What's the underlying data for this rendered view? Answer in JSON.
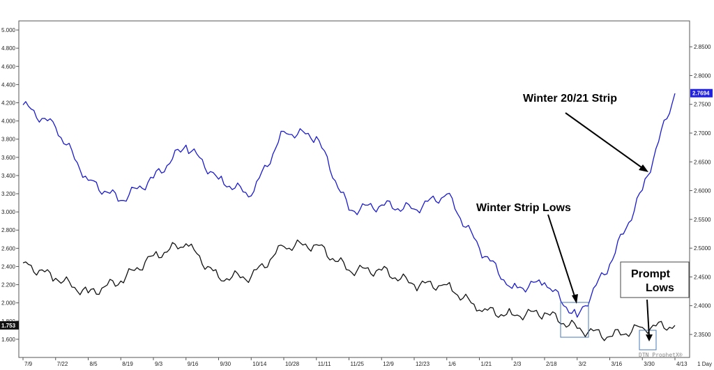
{
  "chart_data": {
    "type": "line",
    "title": "",
    "xlabel": "",
    "ylabel": "",
    "grid": false,
    "x_tick_labels": [
      "7/9",
      "7/22",
      "8/5",
      "8/19",
      "9/3",
      "9/16",
      "9/30",
      "10/14",
      "10/28",
      "11/11",
      "11/25",
      "12/9",
      "12/23",
      "1/6",
      "1/21",
      "2/3",
      "2/18",
      "3/2",
      "3/16",
      "3/30",
      "4/13"
    ],
    "y_left": {
      "ylim": [
        1.4,
        5.1
      ],
      "ticks": [
        "1.600",
        "1.800",
        "2.000",
        "2.200",
        "2.400",
        "2.600",
        "2.800",
        "3.000",
        "3.200",
        "3.400",
        "3.600",
        "3.800",
        "4.000",
        "4.200",
        "4.400",
        "4.600",
        "4.800",
        "5.000"
      ],
      "last_value_label": "1.753"
    },
    "y_right": {
      "ylim": [
        2.31,
        2.895
      ],
      "ticks": [
        "2.3500",
        "2.4000",
        "2.4500",
        "2.5000",
        "2.5500",
        "2.6000",
        "2.6500",
        "2.7000",
        "2.7500",
        "2.8000",
        "2.8500"
      ],
      "last_value_label": "2.7694"
    },
    "series": [
      {
        "name": "Winter 20/21 Strip",
        "axis": "right",
        "color": "#1a1acc",
        "x": [
          0,
          1,
          2,
          3,
          4,
          5,
          6,
          7,
          8,
          9,
          10,
          11,
          12,
          13,
          14,
          15,
          16,
          17,
          18,
          19,
          20
        ],
        "values": [
          2.749,
          2.71,
          2.618,
          2.583,
          2.622,
          2.679,
          2.62,
          2.591,
          2.703,
          2.694,
          2.566,
          2.575,
          2.568,
          2.594,
          2.5,
          2.43,
          2.44,
          2.38,
          2.472,
          2.601,
          2.769
        ]
      },
      {
        "name": "Prompt",
        "axis": "left",
        "color": "#111111",
        "x": [
          0,
          1,
          2,
          3,
          4,
          5,
          6,
          7,
          8,
          9,
          10,
          11,
          12,
          13,
          14,
          15,
          16,
          17,
          18,
          19,
          20
        ],
        "values": [
          2.44,
          2.27,
          2.11,
          2.24,
          2.52,
          2.65,
          2.28,
          2.29,
          2.62,
          2.64,
          2.36,
          2.36,
          2.2,
          2.2,
          1.92,
          1.87,
          1.89,
          1.72,
          1.63,
          1.73,
          1.753
        ]
      }
    ],
    "annotations": [
      {
        "text": "Winter 20/21 Strip"
      },
      {
        "text": "Winter Strip Lows"
      },
      {
        "text": "Prompt"
      },
      {
        "text": "Lows"
      }
    ],
    "footer": "1 Day",
    "watermark": "DTN ProphetX®"
  }
}
